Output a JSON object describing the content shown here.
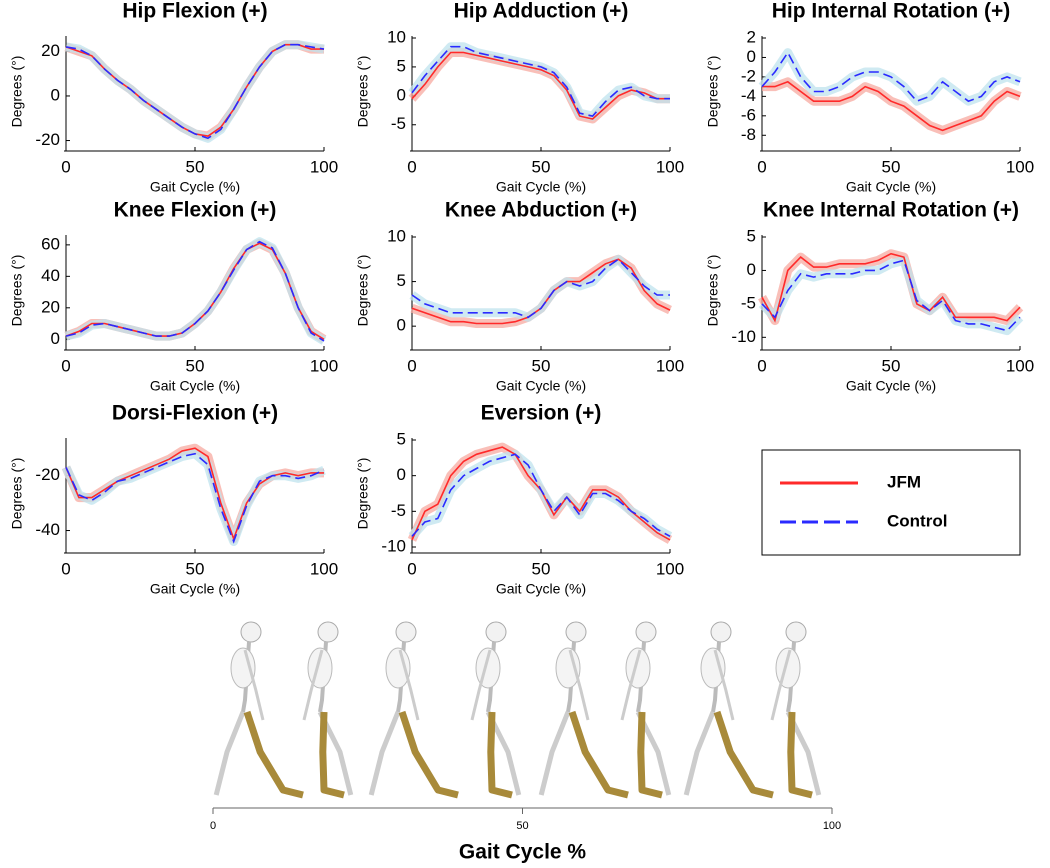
{
  "chart_data": [
    {
      "type": "line",
      "title": "Hip Flexion (+)",
      "xlabel": "Gait Cycle (%)",
      "ylabel": "Degrees (°)",
      "x": [
        0,
        5,
        10,
        15,
        20,
        25,
        30,
        35,
        40,
        45,
        50,
        55,
        60,
        65,
        70,
        75,
        80,
        85,
        90,
        95,
        100
      ],
      "xlim": [
        0,
        100
      ],
      "xticks": [
        0,
        50,
        100
      ],
      "ylim": [
        -22,
        26
      ],
      "yticks": [
        -20,
        0,
        20
      ],
      "series": [
        {
          "name": "JFM",
          "color": "#ff2a2a",
          "dash": "solid",
          "values": [
            22,
            20,
            18,
            12,
            7,
            3,
            -2,
            -6,
            -10,
            -14,
            -17,
            -18,
            -14,
            -6,
            4,
            13,
            20,
            23,
            23,
            21,
            21
          ]
        },
        {
          "name": "Control",
          "color": "#2a2aff",
          "dash": "dashed",
          "values": [
            22,
            21,
            18,
            12,
            7,
            3,
            -2,
            -6,
            -10,
            -14,
            -17,
            -19,
            -15,
            -6,
            4,
            13,
            20,
            23,
            23,
            22,
            21
          ]
        }
      ]
    },
    {
      "type": "line",
      "title": "Hip Adduction (+)",
      "xlabel": "Gait Cycle (%)",
      "ylabel": "Degrees (°)",
      "x": [
        0,
        5,
        10,
        15,
        20,
        25,
        30,
        35,
        40,
        45,
        50,
        55,
        60,
        65,
        70,
        75,
        80,
        85,
        90,
        95,
        100
      ],
      "xlim": [
        0,
        100
      ],
      "xticks": [
        0,
        50,
        100
      ],
      "ylim": [
        -8.5,
        10
      ],
      "yticks": [
        -5,
        0,
        5,
        10
      ],
      "series": [
        {
          "name": "JFM",
          "color": "#ff2a2a",
          "dash": "solid",
          "values": [
            -0.5,
            2,
            5,
            7.5,
            7.5,
            7,
            6.5,
            6,
            5.5,
            5,
            4.5,
            3.5,
            1,
            -3.5,
            -4,
            -2,
            0,
            1,
            0.5,
            -0.5,
            -0.5
          ]
        },
        {
          "name": "Control",
          "color": "#2a2aff",
          "dash": "dashed",
          "values": [
            0.5,
            3.5,
            6,
            8.5,
            8.5,
            7.5,
            7,
            6.5,
            6,
            5.5,
            5,
            4,
            1.5,
            -3,
            -3.5,
            -1,
            1,
            1.5,
            0,
            -0.5,
            -0.5
          ]
        }
      ]
    },
    {
      "type": "line",
      "title": "Hip Internal Rotation (+)",
      "xlabel": "Gait Cycle (%)",
      "ylabel": "Degrees (°)",
      "x": [
        0,
        5,
        10,
        15,
        20,
        25,
        30,
        35,
        40,
        45,
        50,
        55,
        60,
        65,
        70,
        75,
        80,
        85,
        90,
        95,
        100
      ],
      "xlim": [
        0,
        100
      ],
      "xticks": [
        0,
        50,
        100
      ],
      "ylim": [
        -9,
        2
      ],
      "yticks": [
        -8,
        -6,
        -4,
        -2,
        0,
        2
      ],
      "series": [
        {
          "name": "JFM",
          "color": "#ff2a2a",
          "dash": "solid",
          "values": [
            -3,
            -3,
            -2.5,
            -3.5,
            -4.5,
            -4.5,
            -4.5,
            -4,
            -3,
            -3.5,
            -4.5,
            -5,
            -6,
            -7,
            -7.5,
            -7,
            -6.5,
            -6,
            -4.5,
            -3.5,
            -4
          ]
        },
        {
          "name": "Control",
          "color": "#2a2aff",
          "dash": "dashed",
          "values": [
            -3,
            -1.5,
            0.5,
            -2,
            -3.5,
            -3.5,
            -3,
            -2,
            -1.5,
            -1.5,
            -2,
            -3,
            -4.5,
            -4,
            -2.5,
            -3.5,
            -4.5,
            -4,
            -2.5,
            -2,
            -2.5
          ]
        }
      ]
    },
    {
      "type": "line",
      "title": "Knee Flexion (+)",
      "xlabel": "Gait Cycle (%)",
      "ylabel": "Degrees (°)",
      "x": [
        0,
        5,
        10,
        15,
        20,
        25,
        30,
        35,
        40,
        45,
        50,
        55,
        60,
        65,
        70,
        75,
        80,
        85,
        90,
        95,
        100
      ],
      "xlim": [
        0,
        100
      ],
      "xticks": [
        0,
        50,
        100
      ],
      "ylim": [
        -3,
        65
      ],
      "yticks": [
        0,
        20,
        40,
        60
      ],
      "series": [
        {
          "name": "JFM",
          "color": "#ff2a2a",
          "dash": "solid",
          "values": [
            2,
            5,
            10,
            10,
            8,
            6,
            4,
            2,
            2,
            4,
            10,
            18,
            30,
            45,
            57,
            61,
            57,
            42,
            20,
            5,
            0
          ]
        },
        {
          "name": "Control",
          "color": "#2a2aff",
          "dash": "dashed",
          "values": [
            2,
            4,
            9,
            10,
            8,
            6,
            4,
            2,
            2,
            4,
            10,
            18,
            30,
            44,
            57,
            62,
            58,
            42,
            20,
            4,
            -1
          ]
        }
      ]
    },
    {
      "type": "line",
      "title": "Knee Abduction (+)",
      "xlabel": "Gait Cycle (%)",
      "ylabel": "Degrees (°)",
      "x": [
        0,
        5,
        10,
        15,
        20,
        25,
        30,
        35,
        40,
        45,
        50,
        55,
        60,
        65,
        70,
        75,
        80,
        85,
        90,
        95,
        100
      ],
      "xlim": [
        0,
        100
      ],
      "xticks": [
        0,
        50,
        100
      ],
      "ylim": [
        -2,
        10
      ],
      "yticks": [
        0,
        5,
        10
      ],
      "series": [
        {
          "name": "JFM",
          "color": "#ff2a2a",
          "dash": "solid",
          "values": [
            2,
            1.5,
            1,
            0.5,
            0.5,
            0.3,
            0.3,
            0.3,
            0.5,
            1,
            2,
            4,
            5,
            5,
            6,
            7,
            7.5,
            6.5,
            4,
            2.5,
            1.8
          ]
        },
        {
          "name": "Control",
          "color": "#2a2aff",
          "dash": "dashed",
          "values": [
            3.5,
            2.5,
            2,
            1.5,
            1.5,
            1.5,
            1.5,
            1.5,
            1.5,
            1,
            2,
            4,
            5,
            4.5,
            5,
            6.5,
            7.5,
            6,
            4.5,
            3.5,
            3.5
          ]
        }
      ]
    },
    {
      "type": "line",
      "title": "Knee Internal Rotation (+)",
      "xlabel": "Gait Cycle (%)",
      "ylabel": "Degrees (°)",
      "x": [
        0,
        5,
        10,
        15,
        20,
        25,
        30,
        35,
        40,
        45,
        50,
        55,
        60,
        65,
        70,
        75,
        80,
        85,
        90,
        95,
        100
      ],
      "xlim": [
        0,
        100
      ],
      "xticks": [
        0,
        50,
        100
      ],
      "ylim": [
        -11,
        5
      ],
      "yticks": [
        -10,
        -5,
        0,
        5
      ],
      "series": [
        {
          "name": "JFM",
          "color": "#ff2a2a",
          "dash": "solid",
          "values": [
            -4,
            -7.5,
            0,
            2,
            0.5,
            0.5,
            1,
            1,
            1,
            1.5,
            2.5,
            2,
            -5,
            -6,
            -4,
            -7,
            -7,
            -7,
            -7,
            -7.5,
            -5.5
          ]
        },
        {
          "name": "Control",
          "color": "#2a2aff",
          "dash": "dashed",
          "values": [
            -5,
            -7,
            -3,
            -0.5,
            -1,
            -0.5,
            -0.5,
            -0.5,
            0,
            0,
            1,
            1.5,
            -4.5,
            -6,
            -4.5,
            -7.5,
            -8,
            -8,
            -8.5,
            -9,
            -7
          ]
        }
      ]
    },
    {
      "type": "line",
      "title": "Dorsi-Flexion (+)",
      "xlabel": "Gait Cycle (%)",
      "ylabel": "Degrees (°)",
      "x": [
        0,
        5,
        10,
        15,
        20,
        25,
        30,
        35,
        40,
        45,
        50,
        55,
        60,
        65,
        70,
        75,
        80,
        85,
        90,
        95,
        100
      ],
      "xlim": [
        0,
        100
      ],
      "xticks": [
        0,
        50,
        100
      ],
      "ylim": [
        -46,
        -7
      ],
      "yticks": [
        -40,
        -20
      ],
      "series": [
        {
          "name": "JFM",
          "color": "#ff2a2a",
          "dash": "solid",
          "values": [
            -17,
            -28,
            -28,
            -25,
            -22,
            -20,
            -18,
            -16,
            -14,
            -11,
            -10,
            -13,
            -30,
            -43,
            -30,
            -23,
            -20,
            -19,
            -20,
            -19,
            -19
          ]
        },
        {
          "name": "Control",
          "color": "#2a2aff",
          "dash": "dashed",
          "values": [
            -17,
            -27,
            -29,
            -26,
            -22,
            -21,
            -19,
            -17,
            -15,
            -13,
            -12,
            -16,
            -32,
            -44,
            -31,
            -22,
            -20,
            -20,
            -21,
            -20,
            -18
          ]
        }
      ]
    },
    {
      "type": "line",
      "title": "Eversion (+)",
      "xlabel": "Gait Cycle (%)",
      "ylabel": "Degrees (°)",
      "x": [
        0,
        5,
        10,
        15,
        20,
        25,
        30,
        35,
        40,
        45,
        50,
        55,
        60,
        65,
        70,
        75,
        80,
        85,
        90,
        95,
        100
      ],
      "xlim": [
        0,
        100
      ],
      "xticks": [
        0,
        50,
        100
      ],
      "ylim": [
        -10,
        5
      ],
      "yticks": [
        -10,
        -5,
        0,
        5
      ],
      "series": [
        {
          "name": "JFM",
          "color": "#ff2a2a",
          "dash": "solid",
          "values": [
            -9,
            -5,
            -4,
            0,
            2,
            3,
            3.5,
            4,
            3,
            0,
            -2,
            -5.5,
            -3,
            -5,
            -2,
            -2,
            -3,
            -5,
            -6.5,
            -8,
            -9
          ]
        },
        {
          "name": "Control",
          "color": "#2a2aff",
          "dash": "dashed",
          "values": [
            -8.5,
            -6.5,
            -6,
            -2,
            0,
            1,
            2,
            2.5,
            3,
            1.5,
            -2,
            -5,
            -3,
            -5.5,
            -2.5,
            -2.5,
            -3.5,
            -5,
            -6,
            -7.5,
            -8.5
          ]
        }
      ]
    }
  ],
  "figure_axis": {
    "xlabel": "Gait Cycle %",
    "xlim": [
      0,
      100
    ],
    "xticks": [
      0,
      50,
      100
    ]
  }
}
